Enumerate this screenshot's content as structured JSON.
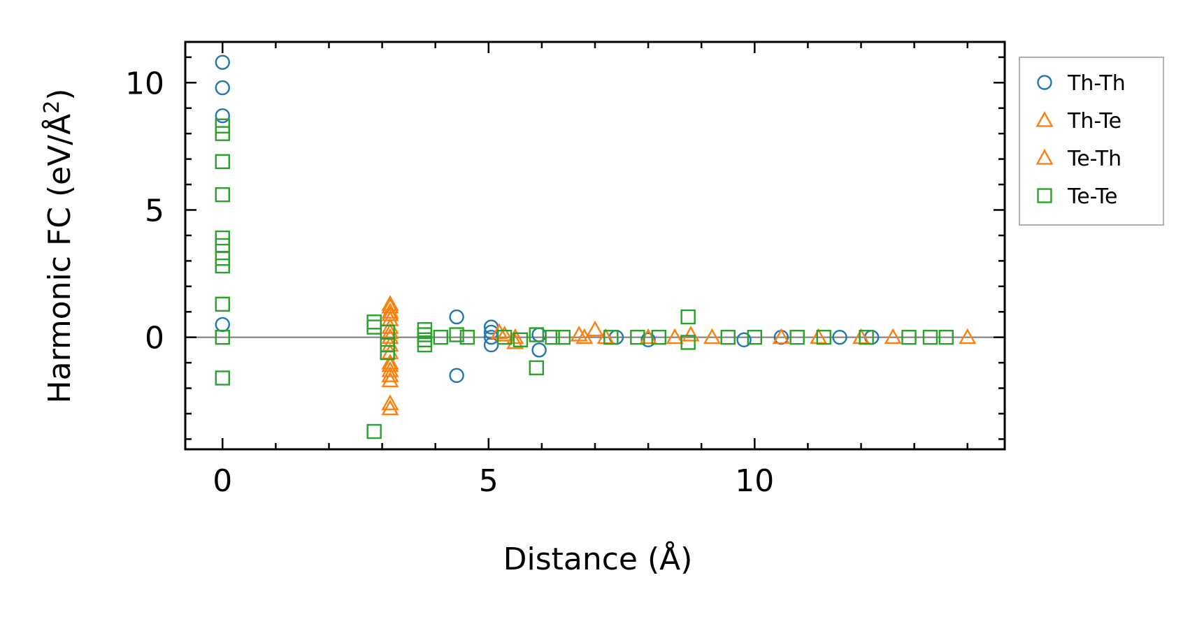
{
  "chart_data": {
    "type": "scatter",
    "title": "",
    "xlabel": "Distance (Å)",
    "ylabel": "Harmonic FC (eV/Å",
    "ylabel_superscript": "2",
    "ylabel_suffix": ")",
    "xlim": [
      -0.7,
      14.7
    ],
    "ylim": [
      -4.4,
      11.6
    ],
    "xticks": [
      0,
      5,
      10
    ],
    "xtick_labels": [
      "0",
      "5",
      "10"
    ],
    "yticks": [
      0,
      5,
      10
    ],
    "ytick_labels": [
      "0",
      "5",
      "10"
    ],
    "reference_line_y": 0,
    "legend_position": "outside-right",
    "series": [
      {
        "name": "Th-Th",
        "marker": "circle",
        "color": "#1f77b4",
        "points": [
          [
            0,
            10.8
          ],
          [
            0,
            9.8
          ],
          [
            0,
            8.7
          ],
          [
            0,
            0.5
          ],
          [
            4.4,
            0.8
          ],
          [
            4.4,
            -1.5
          ],
          [
            5.05,
            0.4
          ],
          [
            5.05,
            0.2
          ],
          [
            5.05,
            0.0
          ],
          [
            5.05,
            -0.3
          ],
          [
            5.95,
            -0.5
          ],
          [
            5.95,
            0.1
          ],
          [
            7.4,
            0.0
          ],
          [
            8.0,
            -0.1
          ],
          [
            9.8,
            -0.1
          ],
          [
            10.5,
            0.0
          ],
          [
            11.6,
            0.0
          ],
          [
            12.2,
            0.0
          ]
        ]
      },
      {
        "name": "Th-Te",
        "marker": "triangle",
        "color": "#ff7f0e",
        "points": [
          [
            3.15,
            1.3
          ],
          [
            3.15,
            1.0
          ],
          [
            3.15,
            0.7
          ],
          [
            3.15,
            0.4
          ],
          [
            3.15,
            0.0
          ],
          [
            3.15,
            -0.6
          ],
          [
            3.15,
            -1.0
          ],
          [
            3.15,
            -1.3
          ],
          [
            3.15,
            -1.7
          ],
          [
            3.15,
            -2.6
          ],
          [
            3.15,
            -2.8
          ],
          [
            5.3,
            0.1
          ],
          [
            5.5,
            -0.2
          ],
          [
            7.0,
            0.3
          ],
          [
            6.8,
            0.0
          ],
          [
            8.0,
            0.0
          ],
          [
            8.8,
            0.1
          ],
          [
            10.5,
            0.0
          ],
          [
            12.6,
            0.0
          ],
          [
            14.0,
            0.0
          ]
        ]
      },
      {
        "name": "Te-Th",
        "marker": "triangle",
        "color": "#ff7f0e",
        "points": [
          [
            3.15,
            1.2
          ],
          [
            3.15,
            0.9
          ],
          [
            3.15,
            0.2
          ],
          [
            3.15,
            -0.3
          ],
          [
            3.15,
            -1.1
          ],
          [
            3.15,
            -1.5
          ],
          [
            5.2,
            0.2
          ],
          [
            5.5,
            0.0
          ],
          [
            6.7,
            0.1
          ],
          [
            7.2,
            0.0
          ],
          [
            8.5,
            0.0
          ],
          [
            9.2,
            0.0
          ],
          [
            11.2,
            0.0
          ],
          [
            12.0,
            0.0
          ]
        ]
      },
      {
        "name": "Te-Te",
        "marker": "square",
        "color": "#2ca02c",
        "points": [
          [
            0,
            8.3
          ],
          [
            0,
            8.0
          ],
          [
            0,
            6.9
          ],
          [
            0,
            5.6
          ],
          [
            0,
            3.9
          ],
          [
            0,
            3.6
          ],
          [
            0,
            3.1
          ],
          [
            0,
            2.8
          ],
          [
            0,
            1.3
          ],
          [
            0,
            0.0
          ],
          [
            0,
            -1.6
          ],
          [
            2.85,
            0.6
          ],
          [
            2.85,
            0.4
          ],
          [
            2.85,
            -3.7
          ],
          [
            3.1,
            0.2
          ],
          [
            3.1,
            -0.3
          ],
          [
            3.1,
            -0.6
          ],
          [
            3.8,
            0.3
          ],
          [
            3.8,
            0.1
          ],
          [
            3.8,
            -0.1
          ],
          [
            3.8,
            -0.3
          ],
          [
            4.1,
            0.0
          ],
          [
            4.4,
            0.1
          ],
          [
            4.6,
            0.0
          ],
          [
            5.3,
            0.0
          ],
          [
            5.6,
            -0.1
          ],
          [
            5.9,
            0.1
          ],
          [
            5.9,
            -1.2
          ],
          [
            6.2,
            0.0
          ],
          [
            6.4,
            0.0
          ],
          [
            7.3,
            0.0
          ],
          [
            7.8,
            0.0
          ],
          [
            8.2,
            0.0
          ],
          [
            8.75,
            0.8
          ],
          [
            8.75,
            -0.2
          ],
          [
            9.5,
            0.0
          ],
          [
            10.0,
            0.0
          ],
          [
            10.8,
            0.0
          ],
          [
            11.3,
            0.0
          ],
          [
            12.1,
            0.0
          ],
          [
            12.9,
            0.0
          ],
          [
            13.3,
            0.0
          ],
          [
            13.6,
            0.0
          ]
        ]
      }
    ]
  }
}
